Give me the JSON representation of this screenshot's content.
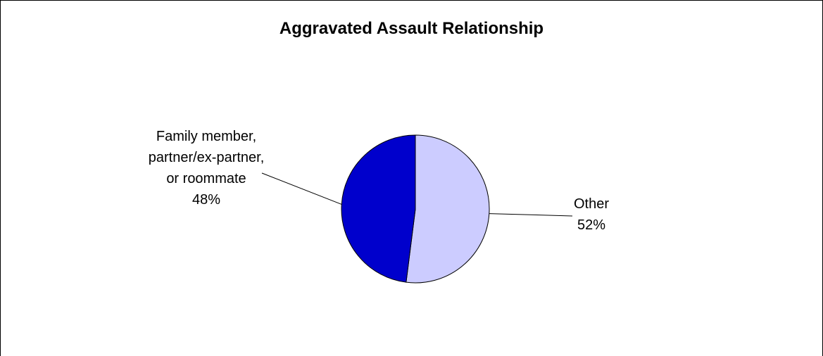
{
  "chart_data": {
    "type": "pie",
    "title": "Aggravated Assault Relationship",
    "slices": [
      {
        "label_lines": [
          "Other",
          "52%"
        ],
        "value": 52,
        "color": "#ccccff"
      },
      {
        "label_lines": [
          "Family member,",
          "partner/ex-partner,",
          "or roommate",
          "48%"
        ],
        "value": 48,
        "color": "#0000cc"
      }
    ],
    "start_angle_deg": 0,
    "direction": "clockwise",
    "legend": "none",
    "outline_color": "#000000"
  }
}
